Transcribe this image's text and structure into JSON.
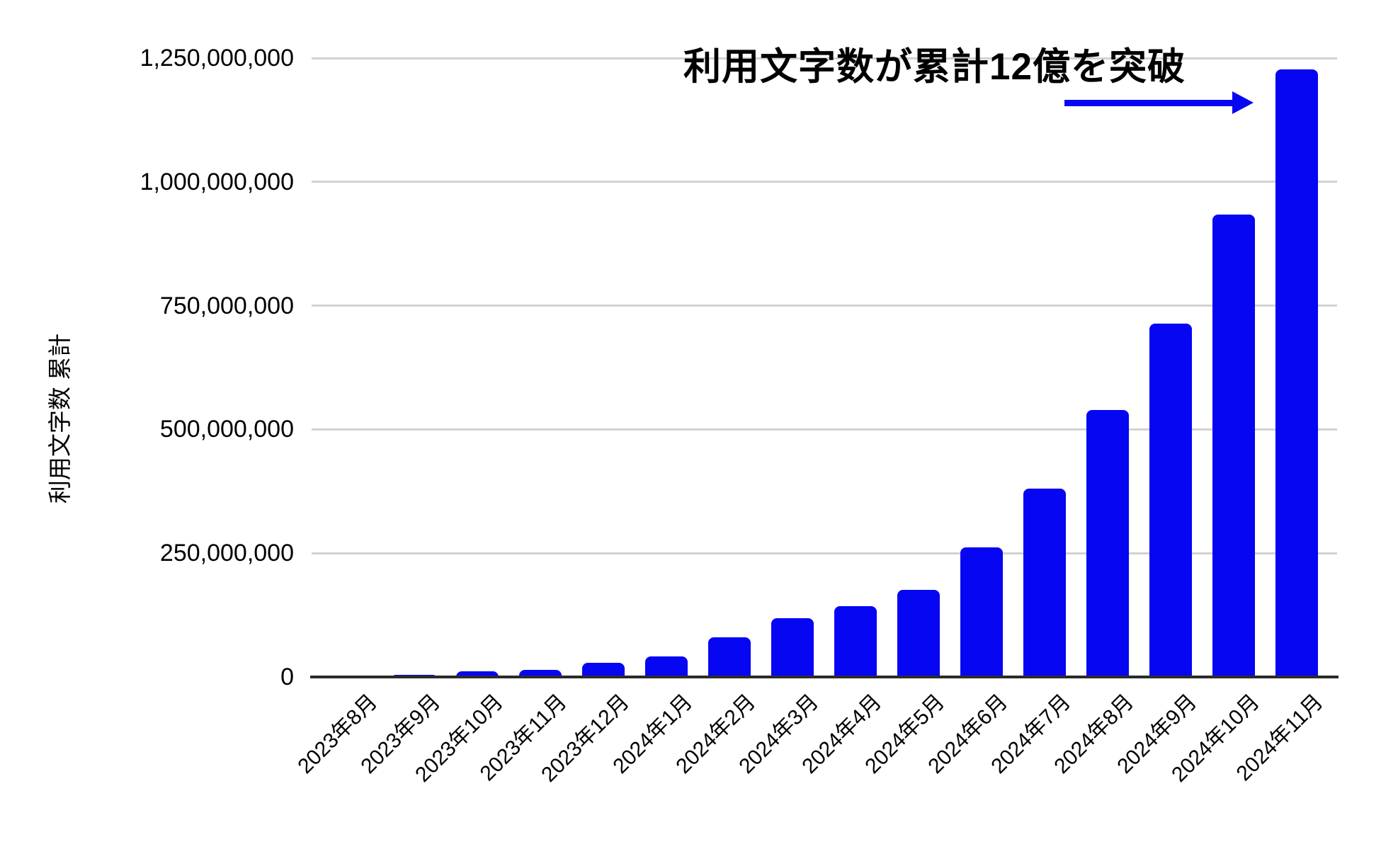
{
  "chart_data": {
    "type": "bar",
    "title": "利用文字数が累計12億を突破",
    "xlabel": "",
    "ylabel": "利用文字数 累計",
    "categories": [
      "2023年8月",
      "2023年9月",
      "2023年10月",
      "2023年11月",
      "2023年12月",
      "2024年1月",
      "2024年2月",
      "2024年3月",
      "2024年4月",
      "2024年5月",
      "2024年6月",
      "2024年7月",
      "2024年8月",
      "2024年9月",
      "2024年10月",
      "2024年11月"
    ],
    "values": [
      1000000,
      4000000,
      11000000,
      15000000,
      29000000,
      42000000,
      80000000,
      119000000,
      143000000,
      176000000,
      262000000,
      380000000,
      539000000,
      714000000,
      934000000,
      1227000000
    ],
    "ylim": [
      0,
      1250000000
    ],
    "yticks": [
      0,
      250000000,
      500000000,
      750000000,
      1000000000,
      1250000000
    ],
    "ytick_labels": [
      "0",
      "250,000,000",
      "500,000,000",
      "750,000,000",
      "1,000,000,000",
      "1,250,000,000"
    ],
    "grid": true,
    "legend": false,
    "annotation": {
      "text": "利用文字数が累計12億を突破",
      "arrow_direction": "right"
    },
    "colors": {
      "bar": "#0606f2",
      "arrow": "#0606f2",
      "gridline": "#d2d2d2",
      "axis_line": "#2b2b2b",
      "text": "#000000",
      "background": "#ffffff"
    }
  }
}
